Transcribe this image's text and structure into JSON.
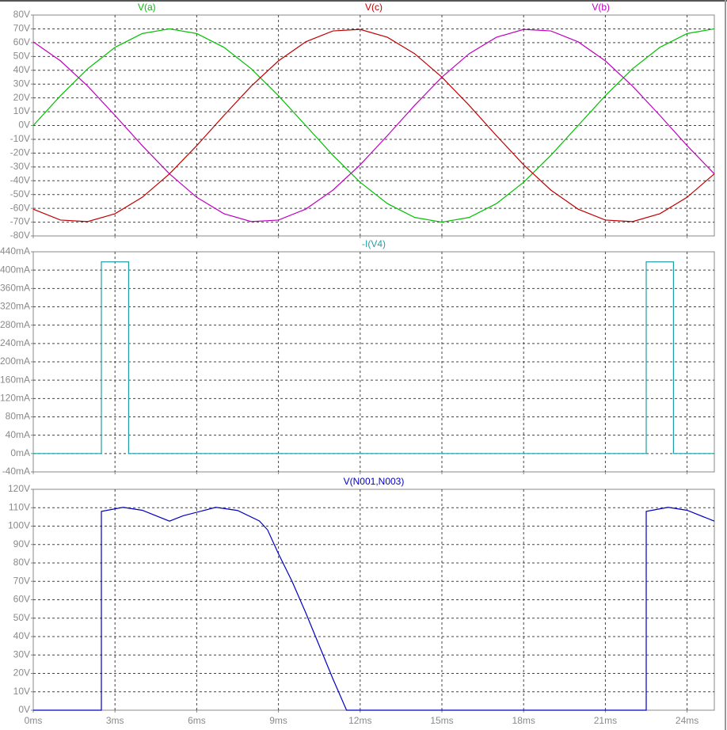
{
  "chart_data": [
    {
      "type": "line",
      "x": [
        0,
        1,
        2,
        3,
        4,
        5,
        6,
        7,
        8,
        9,
        10,
        11,
        12,
        13,
        14,
        15,
        16,
        17,
        18,
        19,
        20,
        21,
        22,
        23,
        24,
        25
      ],
      "series": [
        {
          "name": "V(a)",
          "color": "#00c000",
          "values": [
            0,
            21.6,
            41.1,
            56.6,
            66.6,
            70,
            66.6,
            56.6,
            41.1,
            21.6,
            0,
            -21.6,
            -41.1,
            -56.6,
            -66.6,
            -70,
            -66.6,
            -56.6,
            -41.1,
            -21.6,
            0,
            21.6,
            41.1,
            56.6,
            66.6,
            70
          ]
        },
        {
          "name": "V(c)",
          "color": "#c00000",
          "values": [
            -60.6,
            -68.5,
            -69.6,
            -63.9,
            -52.0,
            -35,
            -14.6,
            7.3,
            28.5,
            46.8,
            60.6,
            68.5,
            69.6,
            63.9,
            52.0,
            35,
            14.6,
            -7.3,
            -28.5,
            -46.8,
            -60.6,
            -68.5,
            -69.6,
            -63.9,
            -52.0,
            -35
          ]
        },
        {
          "name": "V(b)",
          "color": "#c000c0",
          "values": [
            60.6,
            46.8,
            28.5,
            7.3,
            -14.6,
            -35,
            -52.0,
            -63.9,
            -69.6,
            -68.5,
            -60.6,
            -46.8,
            -28.5,
            -7.3,
            14.6,
            35,
            52.0,
            63.9,
            69.6,
            68.5,
            60.6,
            46.8,
            28.5,
            7.3,
            -14.6,
            -35
          ]
        }
      ],
      "xlim": [
        0,
        25
      ],
      "xticks": [
        0,
        3,
        6,
        9,
        12,
        15,
        18,
        21,
        24
      ],
      "ylim": [
        -80,
        80
      ],
      "yticks": [
        {
          "value": 80,
          "label": "80V"
        },
        {
          "value": 70,
          "label": "70V"
        },
        {
          "value": 60,
          "label": "60V"
        },
        {
          "value": 50,
          "label": "50V"
        },
        {
          "value": 40,
          "label": "40V"
        },
        {
          "value": 30,
          "label": "30V"
        },
        {
          "value": 20,
          "label": "20V"
        },
        {
          "value": 10,
          "label": "10V"
        },
        {
          "value": 0,
          "label": "0V"
        },
        {
          "value": -10,
          "label": "-10V"
        },
        {
          "value": -20,
          "label": "-20V"
        },
        {
          "value": -30,
          "label": "-30V"
        },
        {
          "value": -40,
          "label": "-40V"
        },
        {
          "value": -50,
          "label": "-50V"
        },
        {
          "value": -60,
          "label": "-60V"
        },
        {
          "value": -70,
          "label": "-70V"
        },
        {
          "value": -80,
          "label": "-80V"
        }
      ],
      "grid": true
    },
    {
      "type": "line",
      "x": [
        0,
        2.5,
        2.5,
        3.5,
        3.5,
        22.5,
        22.5,
        23.5,
        23.5,
        25
      ],
      "series": [
        {
          "name": "-I(V4)",
          "color": "#1fa0a8",
          "values": [
            0,
            0,
            418,
            418,
            0,
            0,
            418,
            418,
            0,
            0
          ]
        }
      ],
      "xlim": [
        0,
        25
      ],
      "xticks": [
        0,
        3,
        6,
        9,
        12,
        15,
        18,
        21,
        24
      ],
      "ylim": [
        -40,
        440
      ],
      "yticks": [
        {
          "value": 440,
          "label": "440mA"
        },
        {
          "value": 400,
          "label": "400mA"
        },
        {
          "value": 360,
          "label": "360mA"
        },
        {
          "value": 320,
          "label": "320mA"
        },
        {
          "value": 280,
          "label": "280mA"
        },
        {
          "value": 240,
          "label": "240mA"
        },
        {
          "value": 200,
          "label": "200mA"
        },
        {
          "value": 160,
          "label": "160mA"
        },
        {
          "value": 120,
          "label": "120mA"
        },
        {
          "value": 80,
          "label": "80mA"
        },
        {
          "value": 40,
          "label": "40mA"
        },
        {
          "value": 0,
          "label": "0mA"
        },
        {
          "value": -40,
          "label": "-40mA"
        }
      ],
      "grid": true
    },
    {
      "type": "line",
      "x": [
        0,
        2.5,
        2.5,
        3.3,
        4,
        5,
        5.5,
        6.7,
        7.5,
        8.3,
        8.6,
        9,
        9.5,
        10,
        10.5,
        11,
        11.5,
        22.5,
        22.5,
        23.3,
        24,
        25
      ],
      "series": [
        {
          "name": "V(N001,N003)",
          "color": "#0000c0",
          "values": [
            0,
            0,
            108,
            110.2,
            108.6,
            102.7,
            105.6,
            110.2,
            108.5,
            102.8,
            98,
            85,
            70,
            53,
            35,
            17,
            0,
            0,
            108,
            110.2,
            108.6,
            102.7
          ]
        }
      ],
      "xlim": [
        0,
        25
      ],
      "xticks": [
        {
          "value": 0,
          "label": "0ms"
        },
        {
          "value": 3,
          "label": "3ms"
        },
        {
          "value": 6,
          "label": "6ms"
        },
        {
          "value": 9,
          "label": "9ms"
        },
        {
          "value": 12,
          "label": "12ms"
        },
        {
          "value": 15,
          "label": "15ms"
        },
        {
          "value": 18,
          "label": "18ms"
        },
        {
          "value": 21,
          "label": "21ms"
        },
        {
          "value": 24,
          "label": "24ms"
        }
      ],
      "ylim": [
        0,
        120
      ],
      "yticks": [
        {
          "value": 120,
          "label": "120V"
        },
        {
          "value": 110,
          "label": "110V"
        },
        {
          "value": 100,
          "label": "100V"
        },
        {
          "value": 90,
          "label": "90V"
        },
        {
          "value": 80,
          "label": "80V"
        },
        {
          "value": 70,
          "label": "70V"
        },
        {
          "value": 60,
          "label": "60V"
        },
        {
          "value": 50,
          "label": "50V"
        },
        {
          "value": 40,
          "label": "40V"
        },
        {
          "value": 30,
          "label": "30V"
        },
        {
          "value": 20,
          "label": "20V"
        },
        {
          "value": 10,
          "label": "10V"
        },
        {
          "value": 0,
          "label": "0V"
        }
      ],
      "grid": true
    }
  ]
}
